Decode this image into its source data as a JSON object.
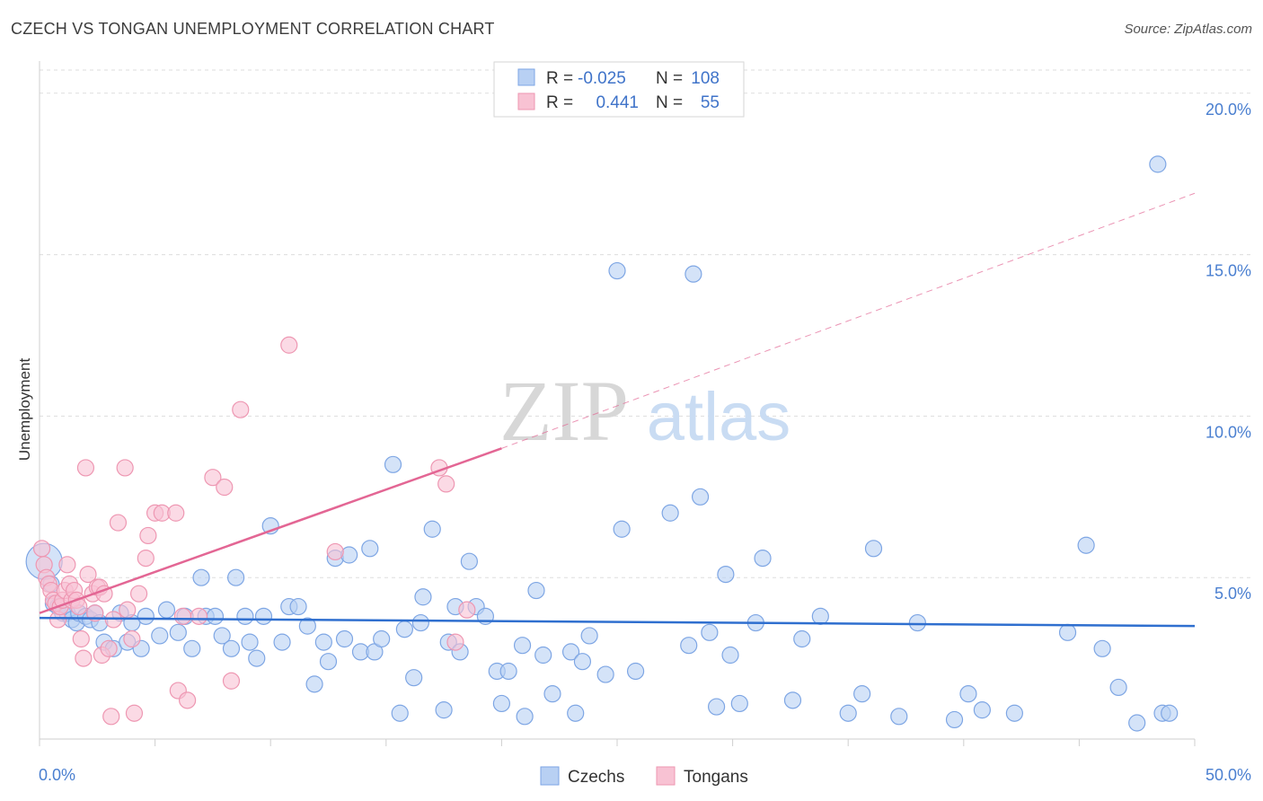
{
  "header": {
    "title": "CZECH VS TONGAN UNEMPLOYMENT CORRELATION CHART",
    "source": "Source: ZipAtlas.com"
  },
  "watermark": {
    "zip": "ZIP",
    "atlas": "atlas"
  },
  "colors": {
    "czech_fill": "#b8d0f3",
    "czech_stroke": "#7ea6e4",
    "czech_line": "#2f6fcf",
    "tongan_fill": "#f8c2d3",
    "tongan_stroke": "#ee97b2",
    "tongan_line": "#e36694",
    "axis_label": "#4a7fd0",
    "grid": "#dddddd"
  },
  "legend": {
    "r_label": "R =",
    "n_label": "N =",
    "rows": [
      {
        "series": "Czechs",
        "r": "-0.025",
        "n": "108"
      },
      {
        "series": "Tongans",
        "r": "0.441",
        "n": "55"
      }
    ]
  },
  "chart_data": {
    "type": "scatter",
    "title": "CZECH VS TONGAN UNEMPLOYMENT CORRELATION CHART",
    "xlabel": "",
    "ylabel": "Unemployment",
    "xlim": [
      0,
      50
    ],
    "ylim": [
      0,
      20.8
    ],
    "x_tick_labels": [
      "0.0%",
      "50.0%"
    ],
    "y_ticks": [
      5,
      10,
      15,
      20
    ],
    "y_tick_labels": [
      "5.0%",
      "10.0%",
      "15.0%",
      "20.0%"
    ],
    "grid": "horizontal dashed",
    "legend_placement": "top-center",
    "series": [
      {
        "name": "Czechs",
        "trend": {
          "x": [
            0,
            50
          ],
          "y": [
            3.75,
            3.5
          ],
          "style": "solid"
        },
        "points": [
          [
            0.2,
            5.5
          ],
          [
            0.5,
            4.8
          ],
          [
            0.6,
            4.2
          ],
          [
            0.8,
            4.1
          ],
          [
            1.0,
            3.9
          ],
          [
            1.2,
            3.9
          ],
          [
            1.4,
            3.7
          ],
          [
            1.6,
            3.6
          ],
          [
            1.7,
            3.9
          ],
          [
            2.0,
            3.8
          ],
          [
            2.2,
            3.7
          ],
          [
            2.4,
            3.9
          ],
          [
            2.6,
            3.6
          ],
          [
            2.8,
            3.0
          ],
          [
            3.2,
            2.8
          ],
          [
            3.5,
            3.9
          ],
          [
            3.8,
            3.0
          ],
          [
            4.0,
            3.6
          ],
          [
            4.4,
            2.8
          ],
          [
            4.6,
            3.8
          ],
          [
            5.2,
            3.2
          ],
          [
            5.5,
            4.0
          ],
          [
            6.0,
            3.3
          ],
          [
            6.3,
            3.8
          ],
          [
            6.6,
            2.8
          ],
          [
            7.0,
            5.0
          ],
          [
            7.2,
            3.8
          ],
          [
            7.6,
            3.8
          ],
          [
            7.9,
            3.2
          ],
          [
            8.3,
            2.8
          ],
          [
            8.5,
            5.0
          ],
          [
            8.9,
            3.8
          ],
          [
            9.1,
            3.0
          ],
          [
            9.4,
            2.5
          ],
          [
            9.7,
            3.8
          ],
          [
            10.0,
            6.6
          ],
          [
            10.5,
            3.0
          ],
          [
            10.8,
            4.1
          ],
          [
            11.2,
            4.1
          ],
          [
            11.6,
            3.5
          ],
          [
            11.9,
            1.7
          ],
          [
            12.3,
            3.0
          ],
          [
            12.5,
            2.4
          ],
          [
            12.8,
            5.6
          ],
          [
            13.2,
            3.1
          ],
          [
            13.4,
            5.7
          ],
          [
            13.9,
            2.7
          ],
          [
            14.3,
            5.9
          ],
          [
            14.5,
            2.7
          ],
          [
            14.8,
            3.1
          ],
          [
            15.3,
            8.5
          ],
          [
            15.6,
            0.8
          ],
          [
            15.8,
            3.4
          ],
          [
            16.2,
            1.9
          ],
          [
            16.5,
            3.6
          ],
          [
            16.6,
            4.4
          ],
          [
            17.0,
            6.5
          ],
          [
            17.5,
            0.9
          ],
          [
            17.7,
            3.0
          ],
          [
            18.0,
            4.1
          ],
          [
            18.2,
            2.7
          ],
          [
            18.6,
            5.5
          ],
          [
            18.9,
            4.1
          ],
          [
            19.3,
            3.8
          ],
          [
            19.8,
            2.1
          ],
          [
            20.0,
            1.1
          ],
          [
            20.3,
            2.1
          ],
          [
            20.9,
            2.9
          ],
          [
            21.0,
            0.7
          ],
          [
            21.5,
            4.6
          ],
          [
            21.8,
            2.6
          ],
          [
            22.2,
            1.4
          ],
          [
            23.0,
            2.7
          ],
          [
            23.2,
            0.8
          ],
          [
            23.5,
            2.4
          ],
          [
            23.8,
            3.2
          ],
          [
            24.5,
            2.0
          ],
          [
            25.0,
            14.5
          ],
          [
            25.2,
            6.5
          ],
          [
            25.8,
            2.1
          ],
          [
            27.3,
            7.0
          ],
          [
            28.1,
            2.9
          ],
          [
            28.3,
            14.4
          ],
          [
            28.6,
            7.5
          ],
          [
            29.0,
            3.3
          ],
          [
            29.3,
            1.0
          ],
          [
            29.7,
            5.1
          ],
          [
            29.9,
            2.6
          ],
          [
            30.3,
            1.1
          ],
          [
            31.0,
            3.6
          ],
          [
            31.3,
            5.6
          ],
          [
            32.6,
            1.2
          ],
          [
            33.0,
            3.1
          ],
          [
            33.8,
            3.8
          ],
          [
            35.0,
            0.8
          ],
          [
            35.6,
            1.4
          ],
          [
            36.1,
            5.9
          ],
          [
            37.2,
            0.7
          ],
          [
            38.0,
            3.6
          ],
          [
            39.6,
            0.6
          ],
          [
            40.2,
            1.4
          ],
          [
            40.8,
            0.9
          ],
          [
            42.2,
            0.8
          ],
          [
            44.5,
            3.3
          ],
          [
            45.3,
            6.0
          ],
          [
            46.0,
            2.8
          ],
          [
            46.7,
            1.6
          ],
          [
            47.5,
            0.5
          ],
          [
            48.4,
            17.8
          ],
          [
            48.6,
            0.8
          ],
          [
            48.9,
            0.8
          ]
        ]
      },
      {
        "name": "Tongans",
        "trend": {
          "x": [
            0,
            20
          ],
          "y": [
            3.9,
            9.0
          ],
          "style": "solid",
          "extension": {
            "x": [
              20,
              50
            ],
            "y": [
              9.0,
              16.9
            ],
            "style": "dashed"
          }
        },
        "points": [
          [
            0.1,
            5.9
          ],
          [
            0.2,
            5.4
          ],
          [
            0.3,
            5.0
          ],
          [
            0.4,
            4.8
          ],
          [
            0.5,
            4.6
          ],
          [
            0.6,
            4.3
          ],
          [
            0.7,
            4.2
          ],
          [
            0.8,
            3.7
          ],
          [
            0.9,
            4.1
          ],
          [
            1.0,
            4.3
          ],
          [
            1.1,
            4.6
          ],
          [
            1.2,
            5.4
          ],
          [
            1.3,
            4.8
          ],
          [
            1.4,
            4.3
          ],
          [
            1.5,
            4.6
          ],
          [
            1.6,
            4.3
          ],
          [
            1.7,
            4.1
          ],
          [
            1.8,
            3.1
          ],
          [
            1.9,
            2.5
          ],
          [
            2.0,
            8.4
          ],
          [
            2.1,
            5.1
          ],
          [
            2.3,
            4.5
          ],
          [
            2.4,
            3.9
          ],
          [
            2.5,
            4.7
          ],
          [
            2.6,
            4.7
          ],
          [
            2.7,
            2.6
          ],
          [
            2.8,
            4.5
          ],
          [
            3.0,
            2.8
          ],
          [
            3.1,
            0.7
          ],
          [
            3.2,
            3.7
          ],
          [
            3.4,
            6.7
          ],
          [
            3.7,
            8.4
          ],
          [
            3.8,
            4.0
          ],
          [
            4.0,
            3.1
          ],
          [
            4.1,
            0.8
          ],
          [
            4.3,
            4.5
          ],
          [
            4.6,
            5.6
          ],
          [
            4.7,
            6.3
          ],
          [
            5.0,
            7.0
          ],
          [
            5.3,
            7.0
          ],
          [
            5.9,
            7.0
          ],
          [
            6.0,
            1.5
          ],
          [
            6.2,
            3.8
          ],
          [
            6.4,
            1.2
          ],
          [
            6.9,
            3.8
          ],
          [
            7.5,
            8.1
          ],
          [
            8.0,
            7.8
          ],
          [
            8.3,
            1.8
          ],
          [
            8.7,
            10.2
          ],
          [
            10.8,
            12.2
          ],
          [
            12.8,
            5.8
          ],
          [
            17.3,
            8.4
          ],
          [
            17.6,
            7.9
          ],
          [
            18.0,
            3.0
          ],
          [
            18.5,
            4.0
          ]
        ]
      }
    ]
  }
}
